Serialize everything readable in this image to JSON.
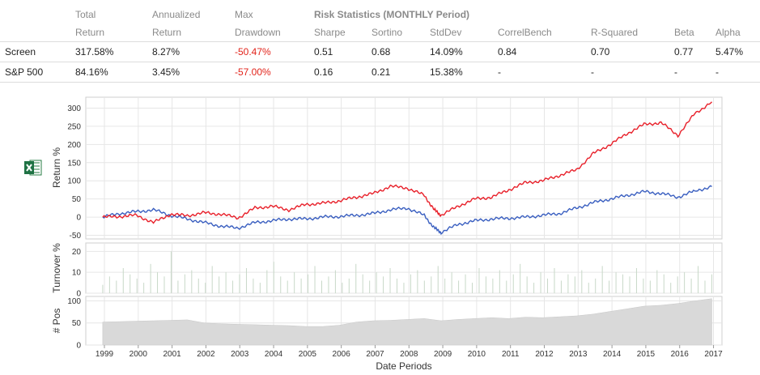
{
  "stats": {
    "header1": [
      "",
      "Total",
      "Annualized",
      "Max",
      "Risk Statistics (MONTHLY Period)",
      "",
      "",
      "",
      "",
      "",
      ""
    ],
    "header2": [
      "",
      "Return",
      "Return",
      "Drawdown",
      "Sharpe",
      "Sortino",
      "StdDev",
      "CorrelBench",
      "R-Squared",
      "Beta",
      "Alpha"
    ],
    "rows": [
      {
        "name": "Screen",
        "total": "317.58%",
        "annual": "8.27%",
        "maxdd": "-50.47%",
        "sharpe": "0.51",
        "sortino": "0.68",
        "stddev": "14.09%",
        "correl": "0.84",
        "rsq": "0.70",
        "beta": "0.77",
        "alpha": "5.47%"
      },
      {
        "name": "S&P 500",
        "total": "84.16%",
        "annual": "3.45%",
        "maxdd": "-57.00%",
        "sharpe": "0.16",
        "sortino": "0.21",
        "stddev": "15.38%",
        "correl": "-",
        "rsq": "-",
        "beta": "-",
        "alpha": "-"
      }
    ]
  },
  "colors": {
    "screen": "#e8202a",
    "sp500": "#3a5fc0",
    "turnover": "#c8d8c8",
    "positions": "#d9d9d9",
    "negative": "#e2231a"
  },
  "chart_data": [
    {
      "type": "line",
      "ylabel": "Return %",
      "ylim": [
        -60,
        330
      ],
      "yticks": [
        -50,
        0,
        50,
        100,
        150,
        200,
        250,
        300
      ],
      "x_range": [
        1998.5,
        2017.3
      ],
      "series": [
        {
          "name": "Screen",
          "x": [
            1999.0,
            1999.5,
            2000.0,
            2000.5,
            2001.0,
            2001.5,
            2002.0,
            2002.5,
            2003.0,
            2003.5,
            2004.0,
            2004.5,
            2005.0,
            2005.5,
            2006.0,
            2006.5,
            2007.0,
            2007.5,
            2008.0,
            2008.5,
            2008.8,
            2009.0,
            2009.5,
            2010.0,
            2010.5,
            2011.0,
            2011.5,
            2012.0,
            2012.5,
            2013.0,
            2013.5,
            2014.0,
            2014.5,
            2015.0,
            2015.5,
            2016.0,
            2016.5,
            2017.0
          ],
          "y": [
            0,
            2,
            5,
            -15,
            8,
            4,
            12,
            8,
            -2,
            25,
            30,
            20,
            35,
            38,
            45,
            55,
            65,
            85,
            80,
            60,
            20,
            5,
            30,
            50,
            55,
            75,
            95,
            100,
            115,
            130,
            175,
            200,
            230,
            255,
            260,
            225,
            285,
            317
          ]
        },
        {
          "name": "S&P 500",
          "x": [
            1999.0,
            1999.5,
            2000.0,
            2000.5,
            2001.0,
            2001.5,
            2002.0,
            2002.5,
            2003.0,
            2003.5,
            2004.0,
            2004.5,
            2005.0,
            2005.5,
            2006.0,
            2006.5,
            2007.0,
            2007.5,
            2008.0,
            2008.5,
            2008.8,
            2009.0,
            2009.5,
            2010.0,
            2010.5,
            2011.0,
            2011.5,
            2012.0,
            2012.5,
            2013.0,
            2013.5,
            2014.0,
            2014.5,
            2015.0,
            2015.5,
            2016.0,
            2016.5,
            2017.0
          ],
          "y": [
            0,
            10,
            15,
            20,
            5,
            -5,
            -15,
            -25,
            -30,
            -15,
            -10,
            -5,
            -5,
            0,
            2,
            5,
            10,
            20,
            25,
            5,
            -30,
            -42,
            -20,
            -10,
            -5,
            -3,
            0,
            5,
            10,
            25,
            40,
            50,
            60,
            70,
            65,
            55,
            72,
            84
          ]
        }
      ]
    },
    {
      "type": "bar",
      "ylabel": "Turnover %",
      "ylim": [
        0,
        24
      ],
      "yticks": [
        0,
        10,
        20
      ],
      "description_series": "weekly turnover bars",
      "values": [
        4,
        8,
        6,
        12,
        9,
        7,
        5,
        14,
        10,
        8,
        20,
        6,
        9,
        11,
        7,
        5,
        13,
        8,
        10,
        6,
        9,
        12,
        7,
        5,
        11,
        15,
        8,
        6,
        10,
        7,
        9,
        13,
        6,
        8,
        11,
        5,
        7,
        14,
        9,
        6,
        10,
        8,
        12,
        7,
        5,
        9,
        11,
        6,
        8,
        13,
        7,
        10,
        6,
        9,
        5,
        12,
        8,
        7,
        11,
        6,
        9,
        14,
        8,
        5,
        10,
        7,
        12,
        6,
        9,
        8,
        11,
        5,
        7,
        13,
        6,
        10,
        9,
        8,
        12,
        7,
        6,
        11,
        9,
        5,
        8,
        10,
        7,
        13,
        6,
        9
      ]
    },
    {
      "type": "area",
      "ylabel": "# Pos",
      "ylim": [
        0,
        110
      ],
      "yticks": [
        0,
        50,
        100
      ],
      "x": [
        1999.0,
        1999.5,
        2000.0,
        2000.5,
        2001.0,
        2001.5,
        2002.0,
        2002.5,
        2003.0,
        2003.5,
        2004.0,
        2004.5,
        2005.0,
        2005.5,
        2006.0,
        2006.5,
        2007.0,
        2007.5,
        2008.0,
        2008.5,
        2009.0,
        2009.5,
        2010.0,
        2010.5,
        2011.0,
        2011.5,
        2012.0,
        2012.5,
        2013.0,
        2013.5,
        2014.0,
        2014.5,
        2015.0,
        2015.5,
        2016.0,
        2016.5,
        2017.0
      ],
      "y": [
        52,
        53,
        54,
        55,
        56,
        57,
        50,
        48,
        47,
        46,
        45,
        44,
        42,
        42,
        45,
        52,
        55,
        56,
        58,
        60,
        55,
        58,
        60,
        62,
        60,
        63,
        62,
        64,
        66,
        70,
        76,
        82,
        88,
        90,
        94,
        100,
        105
      ]
    }
  ],
  "xaxis": {
    "label": "Date Periods",
    "ticks": [
      1999,
      2000,
      2001,
      2002,
      2003,
      2004,
      2005,
      2006,
      2007,
      2008,
      2009,
      2010,
      2011,
      2012,
      2013,
      2014,
      2015,
      2016,
      2017
    ],
    "tick_labels": [
      "1999",
      "2000",
      "2001",
      "2002",
      "2003",
      "2004",
      "2005",
      "2006",
      "2007",
      "2008",
      "2009",
      "2010",
      "2011",
      "2012",
      "2013",
      "2014",
      "2015",
      "2016",
      "2017"
    ]
  },
  "excel_icon": "excel-icon"
}
